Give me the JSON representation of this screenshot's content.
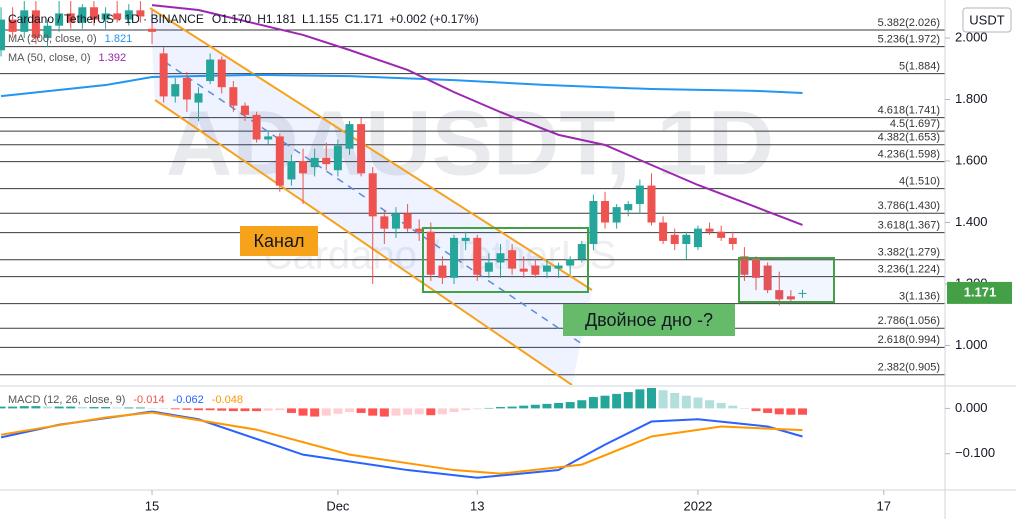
{
  "chart_data": [
    {
      "type": "candlestick",
      "title": "Cardano / TetherUS · 1D · BINANCE",
      "ohlc_legend": [
        "O1.170",
        "H1.181",
        "L1.155",
        "C1.171",
        "+0.002 (+0.17%)"
      ],
      "watermark": [
        "ADAUSDT, 1D",
        "Cardano / TetherUS"
      ],
      "open": [
        1.96,
        2.06,
        2.02,
        2.09,
        2.0,
        2.04,
        2.08,
        2.05,
        2.1,
        2.06,
        2.08,
        2.06,
        2.09,
        2.03,
        1.95,
        1.81,
        1.87,
        1.79,
        1.86,
        1.93,
        1.84,
        1.78,
        1.75,
        1.67,
        1.68,
        1.54,
        1.6,
        1.58,
        1.61,
        1.57,
        1.64,
        1.72,
        1.56,
        1.42,
        1.38,
        1.43,
        1.38,
        1.37,
        1.26,
        1.22,
        1.34,
        1.35,
        1.24,
        1.27,
        1.31,
        1.25,
        1.26,
        1.24,
        1.25,
        1.26,
        1.28,
        1.33,
        1.47,
        1.4,
        1.44,
        1.46,
        1.52,
        1.4,
        1.36,
        1.33,
        1.32,
        1.38,
        1.37,
        1.35,
        1.29,
        1.28,
        1.26,
        1.18,
        1.16,
        1.17
      ],
      "high": [
        2.1,
        2.1,
        2.12,
        2.12,
        2.06,
        2.12,
        2.12,
        2.11,
        2.12,
        2.1,
        2.12,
        2.11,
        2.12,
        2.09,
        1.97,
        1.87,
        1.89,
        1.84,
        1.95,
        1.94,
        1.86,
        1.79,
        1.76,
        1.7,
        1.69,
        1.62,
        1.64,
        1.64,
        1.66,
        1.67,
        1.73,
        1.74,
        1.58,
        1.44,
        1.45,
        1.46,
        1.41,
        1.4,
        1.29,
        1.36,
        1.37,
        1.36,
        1.3,
        1.33,
        1.33,
        1.29,
        1.28,
        1.28,
        1.27,
        1.29,
        1.34,
        1.49,
        1.5,
        1.46,
        1.47,
        1.54,
        1.56,
        1.42,
        1.38,
        1.37,
        1.39,
        1.4,
        1.39,
        1.37,
        1.32,
        1.29,
        1.27,
        1.24,
        1.18,
        1.181
      ],
      "low": [
        1.94,
        2.0,
        2.0,
        1.98,
        1.97,
        2.02,
        2.03,
        2.03,
        2.04,
        2.03,
        2.05,
        2.04,
        2.05,
        1.98,
        1.79,
        1.79,
        1.76,
        1.73,
        1.85,
        1.82,
        1.76,
        1.73,
        1.66,
        1.65,
        1.5,
        1.52,
        1.46,
        1.55,
        1.57,
        1.55,
        1.62,
        1.55,
        1.2,
        1.33,
        1.35,
        1.37,
        1.34,
        1.21,
        1.2,
        1.2,
        1.31,
        1.21,
        1.22,
        1.22,
        1.23,
        1.22,
        1.22,
        1.22,
        1.22,
        1.23,
        1.27,
        1.31,
        1.38,
        1.38,
        1.42,
        1.43,
        1.39,
        1.33,
        1.31,
        1.28,
        1.31,
        1.36,
        1.34,
        1.31,
        1.21,
        1.18,
        1.17,
        1.13,
        1.14,
        1.155
      ],
      "close": [
        2.06,
        2.02,
        2.09,
        2.0,
        2.04,
        2.08,
        2.05,
        2.1,
        2.06,
        2.08,
        2.06,
        2.09,
        2.07,
        2.02,
        1.81,
        1.85,
        1.8,
        1.82,
        1.93,
        1.84,
        1.78,
        1.75,
        1.67,
        1.68,
        1.52,
        1.6,
        1.56,
        1.61,
        1.59,
        1.65,
        1.72,
        1.56,
        1.42,
        1.38,
        1.43,
        1.38,
        1.37,
        1.23,
        1.22,
        1.35,
        1.35,
        1.23,
        1.27,
        1.3,
        1.25,
        1.24,
        1.23,
        1.26,
        1.26,
        1.28,
        1.33,
        1.47,
        1.4,
        1.45,
        1.46,
        1.52,
        1.4,
        1.34,
        1.33,
        1.36,
        1.38,
        1.37,
        1.35,
        1.33,
        1.23,
        1.22,
        1.18,
        1.15,
        1.15,
        1.171
      ],
      "up_color": "#26a69a",
      "down_color": "#ef5350",
      "series": [
        {
          "name": "MA (200, close, 0)",
          "color": "#2196f3",
          "legend_value": 1.821,
          "x": [
            0,
            9,
            13,
            22,
            30,
            39,
            47,
            56,
            65,
            69
          ],
          "values": [
            1.811,
            1.847,
            1.873,
            1.88,
            1.876,
            1.863,
            1.847,
            1.834,
            1.828,
            1.821
          ]
        },
        {
          "name": "MA (50, close, 0)",
          "color": "#9c27b0",
          "legend_value": 1.392,
          "x": [
            13,
            17,
            26,
            30,
            35,
            39,
            43,
            48,
            52,
            56,
            60,
            65,
            69
          ],
          "values": [
            2.107,
            2.091,
            2.01,
            1.961,
            1.896,
            1.824,
            1.759,
            1.685,
            1.652,
            1.587,
            1.522,
            1.45,
            1.392
          ]
        }
      ],
      "fib_levels": [
        {
          "value": 2.026,
          "label": "5.382(2.026)"
        },
        {
          "value": 1.972,
          "label": "5.236(1.972)"
        },
        {
          "value": 1.884,
          "label": "5(1.884)"
        },
        {
          "value": 1.741,
          "label": "4.618(1.741)"
        },
        {
          "value": 1.697,
          "label": "4.5(1.697)"
        },
        {
          "value": 1.653,
          "label": "4.382(1.653)"
        },
        {
          "value": 1.598,
          "label": "4.236(1.598)"
        },
        {
          "value": 1.51,
          "label": "4(1.510)"
        },
        {
          "value": 1.43,
          "label": "3.786(1.430)"
        },
        {
          "value": 1.367,
          "label": "3.618(1.367)"
        },
        {
          "value": 1.279,
          "label": "3.382(1.279)"
        },
        {
          "value": 1.224,
          "label": "3.236(1.224)"
        },
        {
          "value": 1.136,
          "label": "3(1.136)"
        },
        {
          "value": 1.056,
          "label": "2.786(1.056)"
        },
        {
          "value": 0.994,
          "label": "2.618(0.994)"
        },
        {
          "value": 0.905,
          "label": "2.382(0.905)"
        }
      ],
      "ylim": [
        0.8715,
        2.1236
      ],
      "yticks": [
        {
          "value": 1,
          "label": "1.000"
        },
        {
          "value": 1.2,
          "label": "1.200"
        },
        {
          "value": 1.4,
          "label": "1.400"
        },
        {
          "value": 1.6,
          "label": "1.600"
        },
        {
          "value": 1.8,
          "label": "1.800"
        },
        {
          "value": 2,
          "label": "2.000"
        }
      ],
      "xlim": [
        -0.09,
        81.27
      ],
      "xticks": [
        {
          "value": 13,
          "label": "15"
        },
        {
          "value": 29,
          "label": "Dec"
        },
        {
          "value": 41,
          "label": "13"
        },
        {
          "value": 60,
          "label": "2022"
        },
        {
          "value": 76,
          "label": "17"
        }
      ],
      "last_price": 1.171,
      "last_price_color": "#43a047",
      "currency": "USDT",
      "annotations": [
        "Канал",
        "Двойное дно -?"
      ]
    },
    {
      "type": "macd",
      "title": "MACD (12, 26, close, 9)",
      "histogram": {
        "legend_value": -0.014,
        "color": "#ef5350",
        "colors": {
          "up_rising": "#26a69a",
          "up_falling": "#b2dfdb",
          "down_falling": "#ff5252",
          "down_rising": "#ffcdd2"
        },
        "values": [
          0.004,
          0.004,
          0.005,
          0.005,
          0.004,
          0.004,
          0.004,
          0.003,
          0.003,
          0.003,
          0.002,
          0.002,
          0.002,
          0.001,
          0,
          -0.002,
          -0.003,
          -0.004,
          -0.004,
          -0.005,
          -0.006,
          -0.006,
          -0.006,
          -0.005,
          -0.004,
          -0.01,
          -0.016,
          -0.018,
          -0.016,
          -0.012,
          -0.008,
          -0.01,
          -0.016,
          -0.018,
          -0.016,
          -0.014,
          -0.013,
          -0.015,
          -0.013,
          -0.008,
          -0.004,
          -0.002,
          0.001,
          0.003,
          0.004,
          0.006,
          0.008,
          0.01,
          0.012,
          0.014,
          0.018,
          0.025,
          0.028,
          0.032,
          0.036,
          0.042,
          0.045,
          0.04,
          0.034,
          0.028,
          0.024,
          0.018,
          0.012,
          0.006,
          0,
          -0.006,
          -0.01,
          -0.013,
          -0.014,
          -0.014
        ]
      },
      "series": [
        {
          "color": "#2962ff",
          "legend_value": -0.062,
          "x": [
            0,
            5,
            13,
            17,
            26,
            35,
            41,
            48,
            52,
            56,
            60,
            66,
            69
          ],
          "values": [
            -0.064,
            -0.036,
            -0.007,
            -0.024,
            -0.102,
            -0.136,
            -0.153,
            -0.136,
            -0.08,
            -0.029,
            -0.024,
            -0.04,
            -0.062
          ]
        },
        {
          "color": "#ff9800",
          "legend_value": -0.048,
          "x": [
            0,
            9,
            13,
            22,
            30,
            39,
            43,
            50,
            56,
            62,
            69
          ],
          "values": [
            -0.058,
            -0.02,
            -0.009,
            -0.047,
            -0.102,
            -0.136,
            -0.144,
            -0.124,
            -0.062,
            -0.04,
            -0.048
          ]
        }
      ],
      "ylim": [
        -0.18,
        0.045
      ],
      "yticks": [
        {
          "value": 0,
          "label": "0.000"
        },
        {
          "value": -0.1,
          "label": "−0.100"
        }
      ]
    }
  ]
}
